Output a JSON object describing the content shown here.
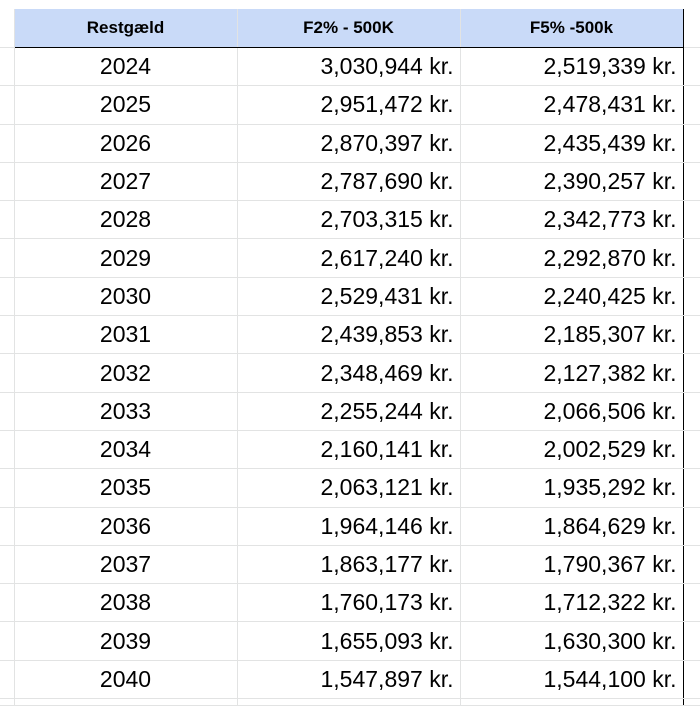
{
  "table": {
    "headers": [
      "Restgæld",
      "F2% - 500K",
      "F5% -500k"
    ],
    "rows": [
      [
        "2024",
        "3,030,944 kr.",
        "2,519,339 kr."
      ],
      [
        "2025",
        "2,951,472 kr.",
        "2,478,431 kr."
      ],
      [
        "2026",
        "2,870,397 kr.",
        "2,435,439 kr."
      ],
      [
        "2027",
        "2,787,690 kr.",
        "2,390,257 kr."
      ],
      [
        "2028",
        "2,703,315 kr.",
        "2,342,773 kr."
      ],
      [
        "2029",
        "2,617,240 kr.",
        "2,292,870 kr."
      ],
      [
        "2030",
        "2,529,431 kr.",
        "2,240,425 kr."
      ],
      [
        "2031",
        "2,439,853 kr.",
        "2,185,307 kr."
      ],
      [
        "2032",
        "2,348,469 kr.",
        "2,127,382 kr."
      ],
      [
        "2033",
        "2,255,244 kr.",
        "2,066,506 kr."
      ],
      [
        "2034",
        "2,160,141 kr.",
        "2,002,529 kr."
      ],
      [
        "2035",
        "2,063,121 kr.",
        "1,935,292 kr."
      ],
      [
        "2036",
        "1,964,146 kr.",
        "1,864,629 kr."
      ],
      [
        "2037",
        "1,863,177 kr.",
        "1,790,367 kr."
      ],
      [
        "2038",
        "1,760,173 kr.",
        "1,712,322 kr."
      ],
      [
        "2039",
        "1,655,093 kr.",
        "1,630,300 kr."
      ],
      [
        "2040",
        "1,547,897 kr.",
        "1,544,100 kr."
      ]
    ]
  },
  "colors": {
    "header_fill": "#c9daf8",
    "gridline": "#e2e3e3",
    "border": "#000000"
  }
}
